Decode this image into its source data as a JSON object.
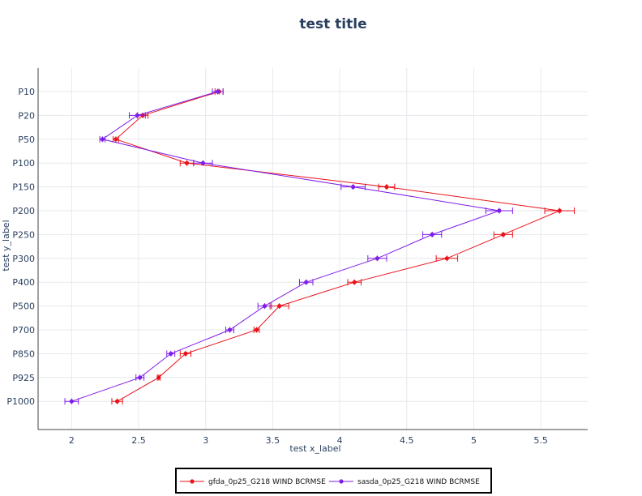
{
  "chart_data": {
    "type": "line",
    "title": "test title",
    "xlabel": "test x_label",
    "ylabel": "test y_label",
    "xlim": [
      1.75,
      5.85
    ],
    "x_ticks": [
      "2",
      "2.5",
      "3",
      "3.5",
      "4",
      "4.5",
      "5",
      "5.5"
    ],
    "categories": [
      "P10",
      "P20",
      "P50",
      "P100",
      "P150",
      "P200",
      "P250",
      "P300",
      "P400",
      "P500",
      "P700",
      "P850",
      "P925",
      "P1000"
    ],
    "grid": true,
    "legend_position": "bottom-center",
    "series": [
      {
        "name": "gfda_0p25_G218 WIND BCRMSE",
        "color": "#e8131b",
        "values": [
          3.1,
          2.53,
          2.33,
          2.86,
          4.35,
          5.64,
          5.22,
          4.8,
          4.11,
          3.55,
          3.38,
          2.85,
          2.65,
          2.34
        ],
        "errors": [
          0.03,
          0.04,
          0.02,
          0.05,
          0.06,
          0.11,
          0.07,
          0.08,
          0.05,
          0.07,
          0.02,
          0.04,
          0.01,
          0.04
        ]
      },
      {
        "name": "sasda_0p25_G218 WIND BCRMSE",
        "color": "#7f1ee8",
        "values": [
          3.09,
          2.49,
          2.23,
          2.98,
          4.1,
          5.19,
          4.69,
          4.28,
          3.75,
          3.44,
          3.18,
          2.74,
          2.51,
          2.0
        ],
        "errors": [
          0.04,
          0.06,
          0.02,
          0.07,
          0.09,
          0.1,
          0.07,
          0.07,
          0.05,
          0.05,
          0.03,
          0.03,
          0.03,
          0.05
        ]
      }
    ]
  }
}
